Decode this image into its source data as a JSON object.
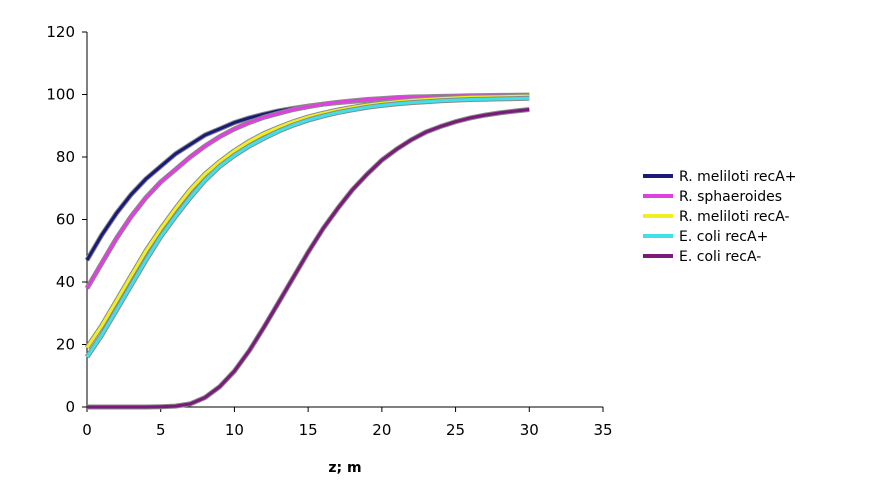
{
  "chart_data": {
    "type": "line",
    "title": "",
    "xlabel": "z; m",
    "ylabel": "",
    "xlim": [
      0,
      35
    ],
    "ylim": [
      0,
      120
    ],
    "xticks": [
      0,
      5,
      10,
      15,
      20,
      25,
      30,
      35
    ],
    "yticks": [
      0,
      20,
      40,
      60,
      80,
      100,
      120
    ],
    "grid": false,
    "legend_position": "right",
    "x": [
      0,
      1,
      2,
      3,
      4,
      5,
      6,
      7,
      8,
      9,
      10,
      11,
      12,
      13,
      14,
      15,
      16,
      17,
      18,
      19,
      20,
      21,
      22,
      23,
      24,
      25,
      26,
      27,
      28,
      29,
      30
    ],
    "series": [
      {
        "name": "R. meliloti recA+",
        "color": "#1a1a7a",
        "values": [
          47,
          55,
          62,
          68,
          73,
          77,
          81,
          84,
          87,
          89,
          91,
          92.5,
          93.7,
          94.8,
          95.6,
          96.3,
          96.9,
          97.4,
          97.8,
          98.1,
          98.4,
          98.6,
          98.8,
          99,
          99.1,
          99.2,
          99.3,
          99.4,
          99.45,
          99.5,
          99.5
        ]
      },
      {
        "name": "R. sphaeroides",
        "color": "#e040e0",
        "values": [
          38,
          46,
          54,
          61,
          67,
          72,
          76,
          80,
          83.5,
          86.5,
          89,
          91,
          92.7,
          94,
          95.2,
          96.1,
          96.9,
          97.5,
          98,
          98.4,
          98.7,
          99,
          99.2,
          99.3,
          99.4,
          99.5,
          99.6,
          99.65,
          99.7,
          99.75,
          99.8
        ]
      },
      {
        "name": "R. meliloti recA-",
        "color": "#f0f020",
        "values": [
          19,
          26,
          34,
          42,
          50,
          57,
          63.5,
          69.5,
          74.5,
          78.5,
          82,
          85,
          87.5,
          89.5,
          91.3,
          92.8,
          94,
          95,
          95.9,
          96.6,
          97.2,
          97.7,
          98.1,
          98.4,
          98.7,
          98.9,
          99.1,
          99.2,
          99.3,
          99.4,
          99.5
        ]
      },
      {
        "name": "E. coli recA+",
        "color": "#40e0e8",
        "values": [
          16,
          23,
          31,
          39,
          47,
          54.5,
          61,
          67,
          72.5,
          77,
          80.5,
          83.5,
          86,
          88.3,
          90.2,
          91.8,
          93.1,
          94.2,
          95.1,
          95.9,
          96.5,
          97,
          97.4,
          97.7,
          98,
          98.2,
          98.4,
          98.5,
          98.6,
          98.7,
          98.8
        ]
      },
      {
        "name": "E. coli recA-",
        "color": "#7a1a7a",
        "values": [
          0,
          0,
          0,
          0,
          0,
          0.1,
          0.3,
          1,
          3,
          6.5,
          11.5,
          18,
          25.5,
          33.5,
          41.5,
          49.5,
          57,
          63.5,
          69.5,
          74.5,
          79,
          82.5,
          85.5,
          88,
          89.8,
          91.3,
          92.5,
          93.4,
          94.1,
          94.7,
          95.2
        ]
      }
    ]
  }
}
